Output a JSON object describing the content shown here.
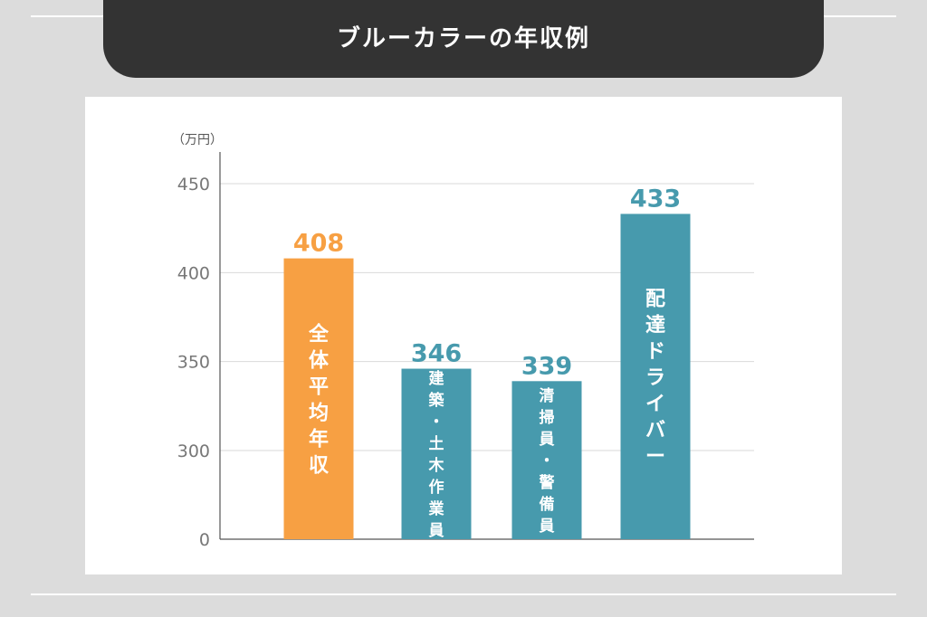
{
  "title": "ブルーカラーの年収例",
  "colors": {
    "background": "#dcdcdc",
    "title_bar": "#333333",
    "panel": "#ffffff",
    "orange": "#f7a043",
    "teal": "#479aad",
    "axis_text": "#777777",
    "grid": "#d9d9d9"
  },
  "chart_data": {
    "type": "bar",
    "unit_label": "（万円）",
    "yticks": [
      "0",
      "300",
      "350",
      "400",
      "450"
    ],
    "axis_break": true,
    "categories": [
      "全体平均年収",
      "建築・土木作業員",
      "清掃員・警備員",
      "配達ドライバー"
    ],
    "values": [
      408,
      346,
      339,
      433
    ],
    "value_labels": [
      "408",
      "346",
      "339",
      "433"
    ],
    "bar_colors": [
      "#f7a043",
      "#479aad",
      "#479aad",
      "#479aad"
    ],
    "ylim": [
      300,
      450
    ],
    "grid": true,
    "xlabel": "",
    "ylabel": ""
  }
}
